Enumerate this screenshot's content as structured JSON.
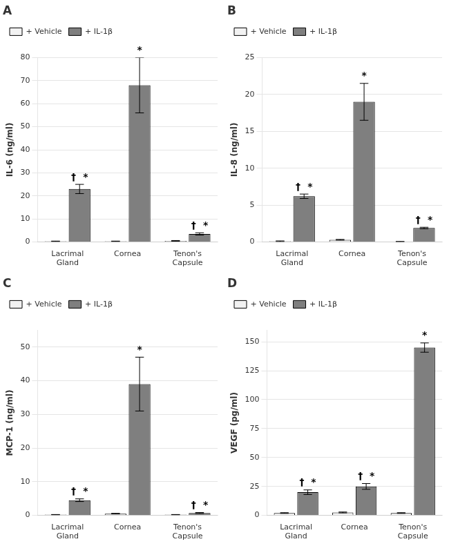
{
  "chart_data": [
    {
      "type": "bar",
      "title": "A",
      "ylabel": "IL-6 (ng/ml)",
      "categories": [
        "Lacrimal\nGland",
        "Cornea",
        "Tenon's\nCapsule"
      ],
      "series": [
        {
          "name": "+ Vehicle",
          "color": "#f2f2f2",
          "values": [
            0.3,
            0.3,
            0.5
          ],
          "errors": [
            0.1,
            0.1,
            0.15
          ]
        },
        {
          "name": "+ IL-1β",
          "color": "#7f7f7f",
          "values": [
            23.0,
            68.0,
            3.5
          ],
          "errors": [
            2.0,
            12.0,
            0.5
          ],
          "annotations": [
            [
              "†",
              "*"
            ],
            [
              "*"
            ],
            [
              "†",
              "*"
            ]
          ]
        }
      ],
      "ylim": [
        0,
        80
      ],
      "yticks": [
        0,
        10,
        20,
        30,
        40,
        50,
        60,
        70,
        80
      ],
      "grid": true,
      "legend": "upper left"
    },
    {
      "type": "bar",
      "title": "B",
      "ylabel": "IL-8 (ng/ml)",
      "categories": [
        "Lacrimal\nGland",
        "Cornea",
        "Tenon's\nCapsule"
      ],
      "series": [
        {
          "name": "+ Vehicle",
          "color": "#f2f2f2",
          "values": [
            0.1,
            0.3,
            0.05
          ],
          "errors": [
            0.05,
            0.05,
            0.02
          ]
        },
        {
          "name": "+ IL-1β",
          "color": "#7f7f7f",
          "values": [
            6.2,
            19.0,
            1.9
          ],
          "errors": [
            0.3,
            2.5,
            0.1
          ],
          "annotations": [
            [
              "†",
              "*"
            ],
            [
              "*"
            ],
            [
              "†",
              "*"
            ]
          ]
        }
      ],
      "ylim": [
        0,
        25
      ],
      "yticks": [
        0,
        5,
        10,
        15,
        20,
        25
      ],
      "grid": true,
      "legend": "upper left"
    },
    {
      "type": "bar",
      "title": "C",
      "ylabel": "MCP-1 (ng/ml)",
      "categories": [
        "Lacrimal\nGland",
        "Cornea",
        "Tenon's\nCapsule"
      ],
      "series": [
        {
          "name": "+ Vehicle",
          "color": "#f2f2f2",
          "values": [
            0.2,
            0.5,
            0.2
          ],
          "errors": [
            0.05,
            0.1,
            0.05
          ]
        },
        {
          "name": "+ IL-1β",
          "color": "#7f7f7f",
          "values": [
            4.5,
            39.0,
            0.7
          ],
          "errors": [
            0.4,
            8.0,
            0.15
          ],
          "annotations": [
            [
              "†",
              "*"
            ],
            [
              "*"
            ],
            [
              "†",
              "*"
            ]
          ]
        }
      ],
      "ylim": [
        0,
        55
      ],
      "yticks": [
        0,
        10,
        20,
        30,
        40,
        50
      ],
      "grid": true,
      "legend": "upper left"
    },
    {
      "type": "bar",
      "title": "D",
      "ylabel": "VEGF (pg/ml)",
      "categories": [
        "Lacrimal\nGland",
        "Cornea",
        "Tenon's\nCapsule"
      ],
      "series": [
        {
          "name": "+ Vehicle",
          "color": "#f2f2f2",
          "values": [
            2.0,
            2.5,
            2.0
          ],
          "errors": [
            0.3,
            0.4,
            0.3
          ]
        },
        {
          "name": "+ IL-1β",
          "color": "#7f7f7f",
          "values": [
            20.0,
            25.0,
            145.0
          ],
          "errors": [
            2.0,
            2.5,
            4.0
          ],
          "annotations": [
            [
              "†",
              "*"
            ],
            [
              "†",
              "*"
            ],
            [
              "*"
            ]
          ]
        }
      ],
      "ylim": [
        0,
        160
      ],
      "yticks": [
        0,
        25,
        50,
        75,
        100,
        125,
        150
      ],
      "grid": true,
      "legend": "upper left"
    }
  ]
}
